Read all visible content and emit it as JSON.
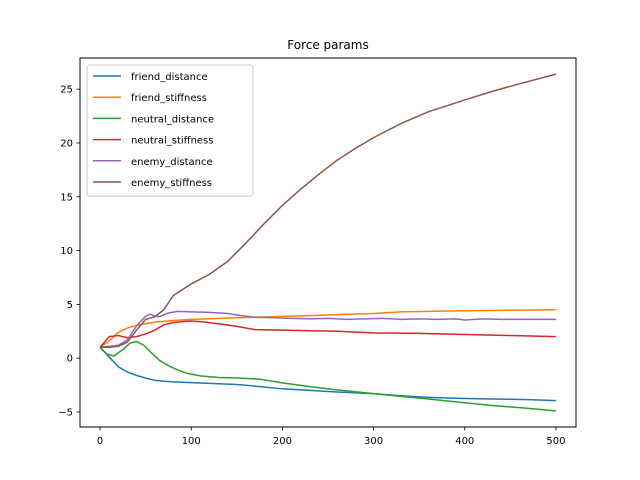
{
  "chart_data": {
    "type": "line",
    "title": "Force params",
    "xlabel": "",
    "ylabel": "",
    "xlim": [
      -22,
      522
    ],
    "ylim": [
      -6.4,
      27.9
    ],
    "xticks": [
      0,
      100,
      200,
      300,
      400,
      500
    ],
    "yticks": [
      -5,
      0,
      5,
      10,
      15,
      20,
      25
    ],
    "grid": false,
    "legend_position": "upper-left",
    "series": [
      {
        "name": "friend_distance",
        "color": "#1f77b4",
        "points": [
          [
            0,
            1.0
          ],
          [
            10,
            0.1
          ],
          [
            20,
            -0.8
          ],
          [
            30,
            -1.3
          ],
          [
            40,
            -1.6
          ],
          [
            50,
            -1.85
          ],
          [
            60,
            -2.05
          ],
          [
            70,
            -2.15
          ],
          [
            80,
            -2.2
          ],
          [
            100,
            -2.28
          ],
          [
            120,
            -2.35
          ],
          [
            150,
            -2.45
          ],
          [
            170,
            -2.6
          ],
          [
            200,
            -2.85
          ],
          [
            230,
            -3.0
          ],
          [
            260,
            -3.15
          ],
          [
            300,
            -3.3
          ],
          [
            330,
            -3.5
          ],
          [
            360,
            -3.65
          ],
          [
            400,
            -3.75
          ],
          [
            430,
            -3.8
          ],
          [
            470,
            -3.85
          ],
          [
            500,
            -3.95
          ]
        ]
      },
      {
        "name": "friend_stiffness",
        "color": "#ff7f0e",
        "points": [
          [
            0,
            1.0
          ],
          [
            10,
            1.6
          ],
          [
            20,
            2.4
          ],
          [
            30,
            2.8
          ],
          [
            40,
            3.05
          ],
          [
            50,
            3.2
          ],
          [
            60,
            3.35
          ],
          [
            80,
            3.5
          ],
          [
            100,
            3.6
          ],
          [
            130,
            3.7
          ],
          [
            150,
            3.75
          ],
          [
            170,
            3.8
          ],
          [
            200,
            3.88
          ],
          [
            230,
            3.95
          ],
          [
            260,
            4.05
          ],
          [
            300,
            4.15
          ],
          [
            330,
            4.3
          ],
          [
            360,
            4.35
          ],
          [
            400,
            4.4
          ],
          [
            450,
            4.45
          ],
          [
            500,
            4.5
          ]
        ]
      },
      {
        "name": "neutral_distance",
        "color": "#2ca02c",
        "points": [
          [
            0,
            1.0
          ],
          [
            8,
            0.35
          ],
          [
            15,
            0.2
          ],
          [
            25,
            0.8
          ],
          [
            33,
            1.4
          ],
          [
            40,
            1.55
          ],
          [
            48,
            1.2
          ],
          [
            55,
            0.6
          ],
          [
            65,
            -0.2
          ],
          [
            75,
            -0.7
          ],
          [
            85,
            -1.1
          ],
          [
            95,
            -1.4
          ],
          [
            110,
            -1.65
          ],
          [
            130,
            -1.8
          ],
          [
            150,
            -1.85
          ],
          [
            175,
            -1.95
          ],
          [
            200,
            -2.3
          ],
          [
            230,
            -2.65
          ],
          [
            260,
            -2.95
          ],
          [
            300,
            -3.3
          ],
          [
            330,
            -3.55
          ],
          [
            360,
            -3.8
          ],
          [
            400,
            -4.15
          ],
          [
            430,
            -4.4
          ],
          [
            460,
            -4.6
          ],
          [
            500,
            -4.9
          ]
        ]
      },
      {
        "name": "neutral_stiffness",
        "color": "#d62728",
        "points": [
          [
            0,
            1.0
          ],
          [
            10,
            2.0
          ],
          [
            20,
            2.1
          ],
          [
            30,
            1.9
          ],
          [
            40,
            2.0
          ],
          [
            50,
            2.25
          ],
          [
            60,
            2.6
          ],
          [
            70,
            3.1
          ],
          [
            80,
            3.3
          ],
          [
            90,
            3.4
          ],
          [
            100,
            3.45
          ],
          [
            110,
            3.4
          ],
          [
            130,
            3.2
          ],
          [
            150,
            2.95
          ],
          [
            170,
            2.65
          ],
          [
            200,
            2.6
          ],
          [
            230,
            2.55
          ],
          [
            260,
            2.5
          ],
          [
            300,
            2.35
          ],
          [
            350,
            2.3
          ],
          [
            400,
            2.2
          ],
          [
            450,
            2.1
          ],
          [
            500,
            2.0
          ]
        ]
      },
      {
        "name": "enemy_distance",
        "color": "#9467bd",
        "points": [
          [
            0,
            1.0
          ],
          [
            10,
            1.1
          ],
          [
            20,
            1.2
          ],
          [
            30,
            1.7
          ],
          [
            40,
            3.0
          ],
          [
            50,
            3.9
          ],
          [
            55,
            4.1
          ],
          [
            60,
            3.9
          ],
          [
            65,
            3.85
          ],
          [
            75,
            4.2
          ],
          [
            85,
            4.35
          ],
          [
            100,
            4.3
          ],
          [
            120,
            4.25
          ],
          [
            140,
            4.15
          ],
          [
            155,
            3.95
          ],
          [
            170,
            3.8
          ],
          [
            190,
            3.75
          ],
          [
            210,
            3.7
          ],
          [
            230,
            3.65
          ],
          [
            250,
            3.7
          ],
          [
            270,
            3.6
          ],
          [
            290,
            3.65
          ],
          [
            310,
            3.7
          ],
          [
            330,
            3.6
          ],
          [
            350,
            3.65
          ],
          [
            370,
            3.6
          ],
          [
            390,
            3.65
          ],
          [
            400,
            3.55
          ],
          [
            420,
            3.65
          ],
          [
            440,
            3.6
          ],
          [
            460,
            3.62
          ],
          [
            480,
            3.6
          ],
          [
            500,
            3.6
          ]
        ]
      },
      {
        "name": "enemy_stiffness",
        "color": "#8c564b",
        "points": [
          [
            0,
            1.0
          ],
          [
            10,
            1.0
          ],
          [
            20,
            1.1
          ],
          [
            30,
            1.5
          ],
          [
            40,
            2.6
          ],
          [
            50,
            3.6
          ],
          [
            60,
            3.85
          ],
          [
            70,
            4.5
          ],
          [
            80,
            5.8
          ],
          [
            100,
            6.9
          ],
          [
            120,
            7.8
          ],
          [
            140,
            9.0
          ],
          [
            160,
            10.7
          ],
          [
            180,
            12.5
          ],
          [
            200,
            14.2
          ],
          [
            220,
            15.7
          ],
          [
            240,
            17.1
          ],
          [
            260,
            18.4
          ],
          [
            280,
            19.5
          ],
          [
            300,
            20.5
          ],
          [
            330,
            21.8
          ],
          [
            360,
            22.9
          ],
          [
            400,
            24.0
          ],
          [
            430,
            24.8
          ],
          [
            460,
            25.5
          ],
          [
            500,
            26.4
          ]
        ]
      }
    ]
  }
}
